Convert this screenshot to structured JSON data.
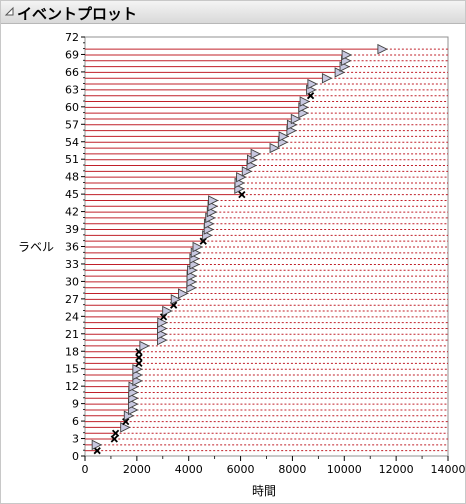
{
  "title": "イベントプロット",
  "chart_data": {
    "type": "event-plot",
    "xlabel": "時間",
    "ylabel": "ラベル",
    "xlim": [
      0,
      14000
    ],
    "ylim": [
      0,
      72
    ],
    "x_ticks": [
      0,
      2000,
      4000,
      6000,
      8000,
      10000,
      12000,
      14000
    ],
    "y_ticks": [
      0,
      3,
      6,
      9,
      12,
      15,
      18,
      21,
      24,
      27,
      30,
      33,
      36,
      39,
      42,
      45,
      48,
      51,
      54,
      57,
      60,
      63,
      66,
      69,
      72
    ],
    "colors": {
      "line": "#c0202a",
      "censored": "#c8c8e0",
      "event": "#000000"
    },
    "rows": [
      {
        "y": 1,
        "x": 470,
        "kind": "event"
      },
      {
        "y": 2,
        "x": 430,
        "kind": "censored"
      },
      {
        "y": 3,
        "x": 1130,
        "kind": "event"
      },
      {
        "y": 4,
        "x": 1180,
        "kind": "event"
      },
      {
        "y": 5,
        "x": 1530,
        "kind": "censored"
      },
      {
        "y": 6,
        "x": 1570,
        "kind": "event"
      },
      {
        "y": 7,
        "x": 1670,
        "kind": "censored"
      },
      {
        "y": 8,
        "x": 1830,
        "kind": "censored"
      },
      {
        "y": 9,
        "x": 1830,
        "kind": "censored"
      },
      {
        "y": 10,
        "x": 1840,
        "kind": "censored"
      },
      {
        "y": 11,
        "x": 1840,
        "kind": "censored"
      },
      {
        "y": 12,
        "x": 1850,
        "kind": "censored"
      },
      {
        "y": 13,
        "x": 2000,
        "kind": "censored"
      },
      {
        "y": 14,
        "x": 2000,
        "kind": "censored"
      },
      {
        "y": 15,
        "x": 2000,
        "kind": "censored"
      },
      {
        "y": 16,
        "x": 2080,
        "kind": "event"
      },
      {
        "y": 17,
        "x": 2080,
        "kind": "event"
      },
      {
        "y": 18,
        "x": 2080,
        "kind": "event"
      },
      {
        "y": 19,
        "x": 2270,
        "kind": "censored"
      },
      {
        "y": 20,
        "x": 2950,
        "kind": "censored"
      },
      {
        "y": 21,
        "x": 2950,
        "kind": "censored"
      },
      {
        "y": 22,
        "x": 2950,
        "kind": "censored"
      },
      {
        "y": 23,
        "x": 2960,
        "kind": "censored"
      },
      {
        "y": 24,
        "x": 3030,
        "kind": "event"
      },
      {
        "y": 25,
        "x": 3150,
        "kind": "censored"
      },
      {
        "y": 26,
        "x": 3420,
        "kind": "event"
      },
      {
        "y": 27,
        "x": 3480,
        "kind": "censored"
      },
      {
        "y": 28,
        "x": 3760,
        "kind": "censored"
      },
      {
        "y": 29,
        "x": 4080,
        "kind": "censored"
      },
      {
        "y": 30,
        "x": 4090,
        "kind": "censored"
      },
      {
        "y": 31,
        "x": 4090,
        "kind": "censored"
      },
      {
        "y": 32,
        "x": 4110,
        "kind": "censored"
      },
      {
        "y": 33,
        "x": 4200,
        "kind": "censored"
      },
      {
        "y": 34,
        "x": 4200,
        "kind": "censored"
      },
      {
        "y": 35,
        "x": 4250,
        "kind": "censored"
      },
      {
        "y": 36,
        "x": 4320,
        "kind": "censored"
      },
      {
        "y": 37,
        "x": 4560,
        "kind": "event"
      },
      {
        "y": 38,
        "x": 4690,
        "kind": "censored"
      },
      {
        "y": 39,
        "x": 4750,
        "kind": "censored"
      },
      {
        "y": 40,
        "x": 4760,
        "kind": "censored"
      },
      {
        "y": 41,
        "x": 4810,
        "kind": "censored"
      },
      {
        "y": 42,
        "x": 4870,
        "kind": "censored"
      },
      {
        "y": 43,
        "x": 4900,
        "kind": "censored"
      },
      {
        "y": 44,
        "x": 4920,
        "kind": "censored"
      },
      {
        "y": 45,
        "x": 6050,
        "kind": "event"
      },
      {
        "y": 46,
        "x": 5930,
        "kind": "censored"
      },
      {
        "y": 47,
        "x": 5940,
        "kind": "censored"
      },
      {
        "y": 48,
        "x": 6000,
        "kind": "censored"
      },
      {
        "y": 49,
        "x": 6220,
        "kind": "censored"
      },
      {
        "y": 50,
        "x": 6400,
        "kind": "censored"
      },
      {
        "y": 51,
        "x": 6420,
        "kind": "censored"
      },
      {
        "y": 52,
        "x": 6560,
        "kind": "censored"
      },
      {
        "y": 53,
        "x": 7290,
        "kind": "censored"
      },
      {
        "y": 54,
        "x": 7610,
        "kind": "censored"
      },
      {
        "y": 55,
        "x": 7640,
        "kind": "censored"
      },
      {
        "y": 56,
        "x": 7940,
        "kind": "censored"
      },
      {
        "y": 57,
        "x": 7960,
        "kind": "censored"
      },
      {
        "y": 58,
        "x": 8110,
        "kind": "censored"
      },
      {
        "y": 59,
        "x": 8400,
        "kind": "censored"
      },
      {
        "y": 60,
        "x": 8400,
        "kind": "censored"
      },
      {
        "y": 61,
        "x": 8450,
        "kind": "censored"
      },
      {
        "y": 62,
        "x": 8700,
        "kind": "event"
      },
      {
        "y": 63,
        "x": 8700,
        "kind": "censored"
      },
      {
        "y": 64,
        "x": 8750,
        "kind": "censored"
      },
      {
        "y": 65,
        "x": 9310,
        "kind": "censored"
      },
      {
        "y": 66,
        "x": 9800,
        "kind": "censored"
      },
      {
        "y": 67,
        "x": 9990,
        "kind": "censored"
      },
      {
        "y": 68,
        "x": 10050,
        "kind": "censored"
      },
      {
        "y": 69,
        "x": 10070,
        "kind": "censored"
      },
      {
        "y": 70,
        "x": 11450,
        "kind": "censored"
      }
    ]
  }
}
